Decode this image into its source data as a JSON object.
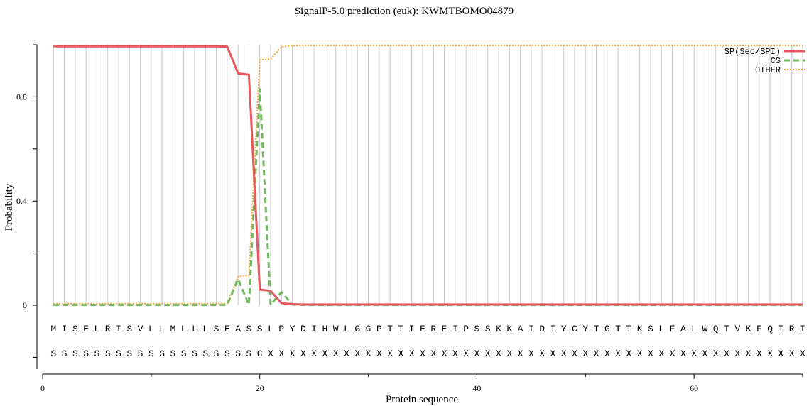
{
  "chart_data": {
    "type": "line",
    "title": "SignalP-5.0 prediction (euk):  KWMTBOMO04879",
    "xlabel": "Protein sequence",
    "ylabel": "Probability",
    "xlim": [
      0,
      70
    ],
    "ylim": [
      -0.25,
      1.0
    ],
    "x_ticks": [
      0,
      20,
      40,
      60
    ],
    "y_ticks": [
      0,
      0.4,
      0.8
    ],
    "y_tick_labels": [
      "0",
      "0.4",
      "0.8"
    ],
    "grid": "vertical lines at each residue",
    "legend_position": "top-right",
    "sequence": [
      "M",
      "I",
      "S",
      "E",
      "L",
      "R",
      "I",
      "S",
      "V",
      "L",
      "L",
      "M",
      "L",
      "L",
      "L",
      "S",
      "E",
      "A",
      "S",
      "S",
      "L",
      "P",
      "Y",
      "D",
      "I",
      "H",
      "W",
      "L",
      "G",
      "G",
      "P",
      "T",
      "T",
      "I",
      "E",
      "R",
      "E",
      "I",
      "P",
      "S",
      "S",
      "K",
      "K",
      "A",
      "I",
      "D",
      "I",
      "Y",
      "C",
      "Y",
      "T",
      "G",
      "T",
      "T",
      "K",
      "S",
      "L",
      "F",
      "A",
      "L",
      "W",
      "Q",
      "T",
      "V",
      "K",
      "F",
      "Q",
      "I",
      "R",
      "I"
    ],
    "annotation": [
      "S",
      "S",
      "S",
      "S",
      "S",
      "S",
      "S",
      "S",
      "S",
      "S",
      "S",
      "S",
      "S",
      "S",
      "S",
      "S",
      "S",
      "S",
      "S",
      "C",
      "X",
      "X",
      "X",
      "X",
      "X",
      "X",
      "X",
      "X",
      "X",
      "X",
      "X",
      "X",
      "X",
      "X",
      "X",
      "X",
      "X",
      "X",
      "X",
      "X",
      "X",
      "X",
      "X",
      "X",
      "X",
      "X",
      "X",
      "X",
      "X",
      "X",
      "X",
      "X",
      "X",
      "X",
      "X",
      "X",
      "X",
      "X",
      "X",
      "X",
      "X",
      "X",
      "X",
      "X",
      "X",
      "X",
      "X",
      "X",
      "X",
      "X"
    ],
    "x": [
      1,
      2,
      3,
      4,
      5,
      6,
      7,
      8,
      9,
      10,
      11,
      12,
      13,
      14,
      15,
      16,
      17,
      18,
      19,
      20,
      21,
      22,
      23,
      24,
      25,
      26,
      27,
      28,
      29,
      30,
      31,
      32,
      33,
      34,
      35,
      36,
      37,
      38,
      39,
      40,
      41,
      42,
      43,
      44,
      45,
      46,
      47,
      48,
      49,
      50,
      51,
      52,
      53,
      54,
      55,
      56,
      57,
      58,
      59,
      60,
      61,
      62,
      63,
      64,
      65,
      66,
      67,
      68,
      69,
      70
    ],
    "series": [
      {
        "name": "SP(Sec/SPI)",
        "color": "#e8595f",
        "style": "solid",
        "values": [
          0.994,
          0.994,
          0.994,
          0.994,
          0.994,
          0.994,
          0.994,
          0.994,
          0.994,
          0.994,
          0.994,
          0.994,
          0.994,
          0.994,
          0.994,
          0.994,
          0.993,
          0.89,
          0.885,
          0.06,
          0.055,
          0.008,
          0.004,
          0.003,
          0.003,
          0.003,
          0.003,
          0.003,
          0.003,
          0.003,
          0.003,
          0.003,
          0.003,
          0.003,
          0.003,
          0.003,
          0.003,
          0.003,
          0.003,
          0.003,
          0.003,
          0.003,
          0.003,
          0.003,
          0.003,
          0.003,
          0.003,
          0.003,
          0.003,
          0.003,
          0.003,
          0.003,
          0.003,
          0.003,
          0.003,
          0.003,
          0.003,
          0.003,
          0.003,
          0.003,
          0.003,
          0.003,
          0.003,
          0.003,
          0.003,
          0.003,
          0.003,
          0.003,
          0.003,
          0.003
        ]
      },
      {
        "name": "CS",
        "color": "#72b85c",
        "style": "dashed",
        "values": [
          0.001,
          0.001,
          0.001,
          0.001,
          0.001,
          0.001,
          0.001,
          0.001,
          0.001,
          0.001,
          0.001,
          0.001,
          0.001,
          0.001,
          0.001,
          0.001,
          0.002,
          0.1,
          0.002,
          0.83,
          0.002,
          0.05,
          0.003,
          0.001,
          0.001,
          0.001,
          0.001,
          0.001,
          0.001,
          0.001,
          0.001,
          0.001,
          0.001,
          0.001,
          0.001,
          0.001,
          0.001,
          0.001,
          0.001,
          0.001,
          0.001,
          0.001,
          0.001,
          0.001,
          0.001,
          0.001,
          0.001,
          0.001,
          0.001,
          0.001,
          0.001,
          0.001,
          0.001,
          0.001,
          0.001,
          0.001,
          0.001,
          0.001,
          0.001,
          0.001,
          0.001,
          0.001,
          0.001,
          0.001,
          0.001,
          0.001,
          0.001,
          0.001,
          0.001,
          0.001
        ]
      },
      {
        "name": "OTHER",
        "color": "#f4a73c",
        "style": "dotted",
        "values": [
          0.006,
          0.006,
          0.006,
          0.006,
          0.006,
          0.006,
          0.006,
          0.006,
          0.006,
          0.006,
          0.006,
          0.006,
          0.006,
          0.006,
          0.006,
          0.006,
          0.007,
          0.11,
          0.115,
          0.942,
          0.945,
          0.992,
          0.996,
          0.997,
          0.997,
          0.997,
          0.997,
          0.997,
          0.997,
          0.997,
          0.997,
          0.997,
          0.997,
          0.997,
          0.997,
          0.997,
          0.997,
          0.997,
          0.997,
          0.997,
          0.997,
          0.997,
          0.997,
          0.997,
          0.997,
          0.997,
          0.997,
          0.997,
          0.997,
          0.997,
          0.997,
          0.997,
          0.997,
          0.997,
          0.997,
          0.997,
          0.997,
          0.997,
          0.997,
          0.997,
          0.997,
          0.997,
          0.997,
          0.997,
          0.997,
          0.997,
          0.997,
          0.997,
          0.997,
          0.997
        ]
      }
    ]
  }
}
